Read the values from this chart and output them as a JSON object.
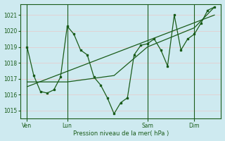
{
  "bg_color": "#ceeaf0",
  "grid_color": "#e8c8c8",
  "line_color": "#1a5c1a",
  "title": "Pression niveau de la mer( hPa )",
  "ylim": [
    1014.5,
    1021.7
  ],
  "yticks": [
    1015,
    1016,
    1017,
    1018,
    1019,
    1020,
    1021
  ],
  "xlim": [
    0,
    30
  ],
  "day_labels": [
    "Ven",
    "Lun",
    "Sam",
    "Dim"
  ],
  "day_positions": [
    1,
    7,
    19,
    26
  ],
  "day_vlines": [
    1,
    7,
    19,
    26
  ],
  "series1_x": [
    1,
    2,
    3,
    4,
    5,
    6,
    7,
    8,
    9,
    10,
    11,
    12,
    13,
    14,
    15,
    16,
    17,
    18,
    19,
    20,
    21,
    22,
    23,
    24,
    25,
    26,
    27,
    28,
    29
  ],
  "series1_y": [
    1019.0,
    1017.2,
    1016.2,
    1016.1,
    1016.3,
    1017.1,
    1020.3,
    1019.8,
    1018.8,
    1018.5,
    1017.1,
    1016.6,
    1015.8,
    1014.8,
    1015.5,
    1015.8,
    1018.5,
    1019.1,
    1019.2,
    1019.5,
    1018.8,
    1017.8,
    1021.0,
    1018.8,
    1019.5,
    1019.8,
    1020.5,
    1021.3,
    1021.5
  ],
  "series2_x": [
    1,
    7,
    14,
    19,
    26,
    29
  ],
  "series2_y": [
    1016.8,
    1016.8,
    1017.2,
    1019.0,
    1020.2,
    1021.5
  ],
  "trend_x": [
    1,
    29
  ],
  "trend_y": [
    1016.5,
    1021.0
  ]
}
